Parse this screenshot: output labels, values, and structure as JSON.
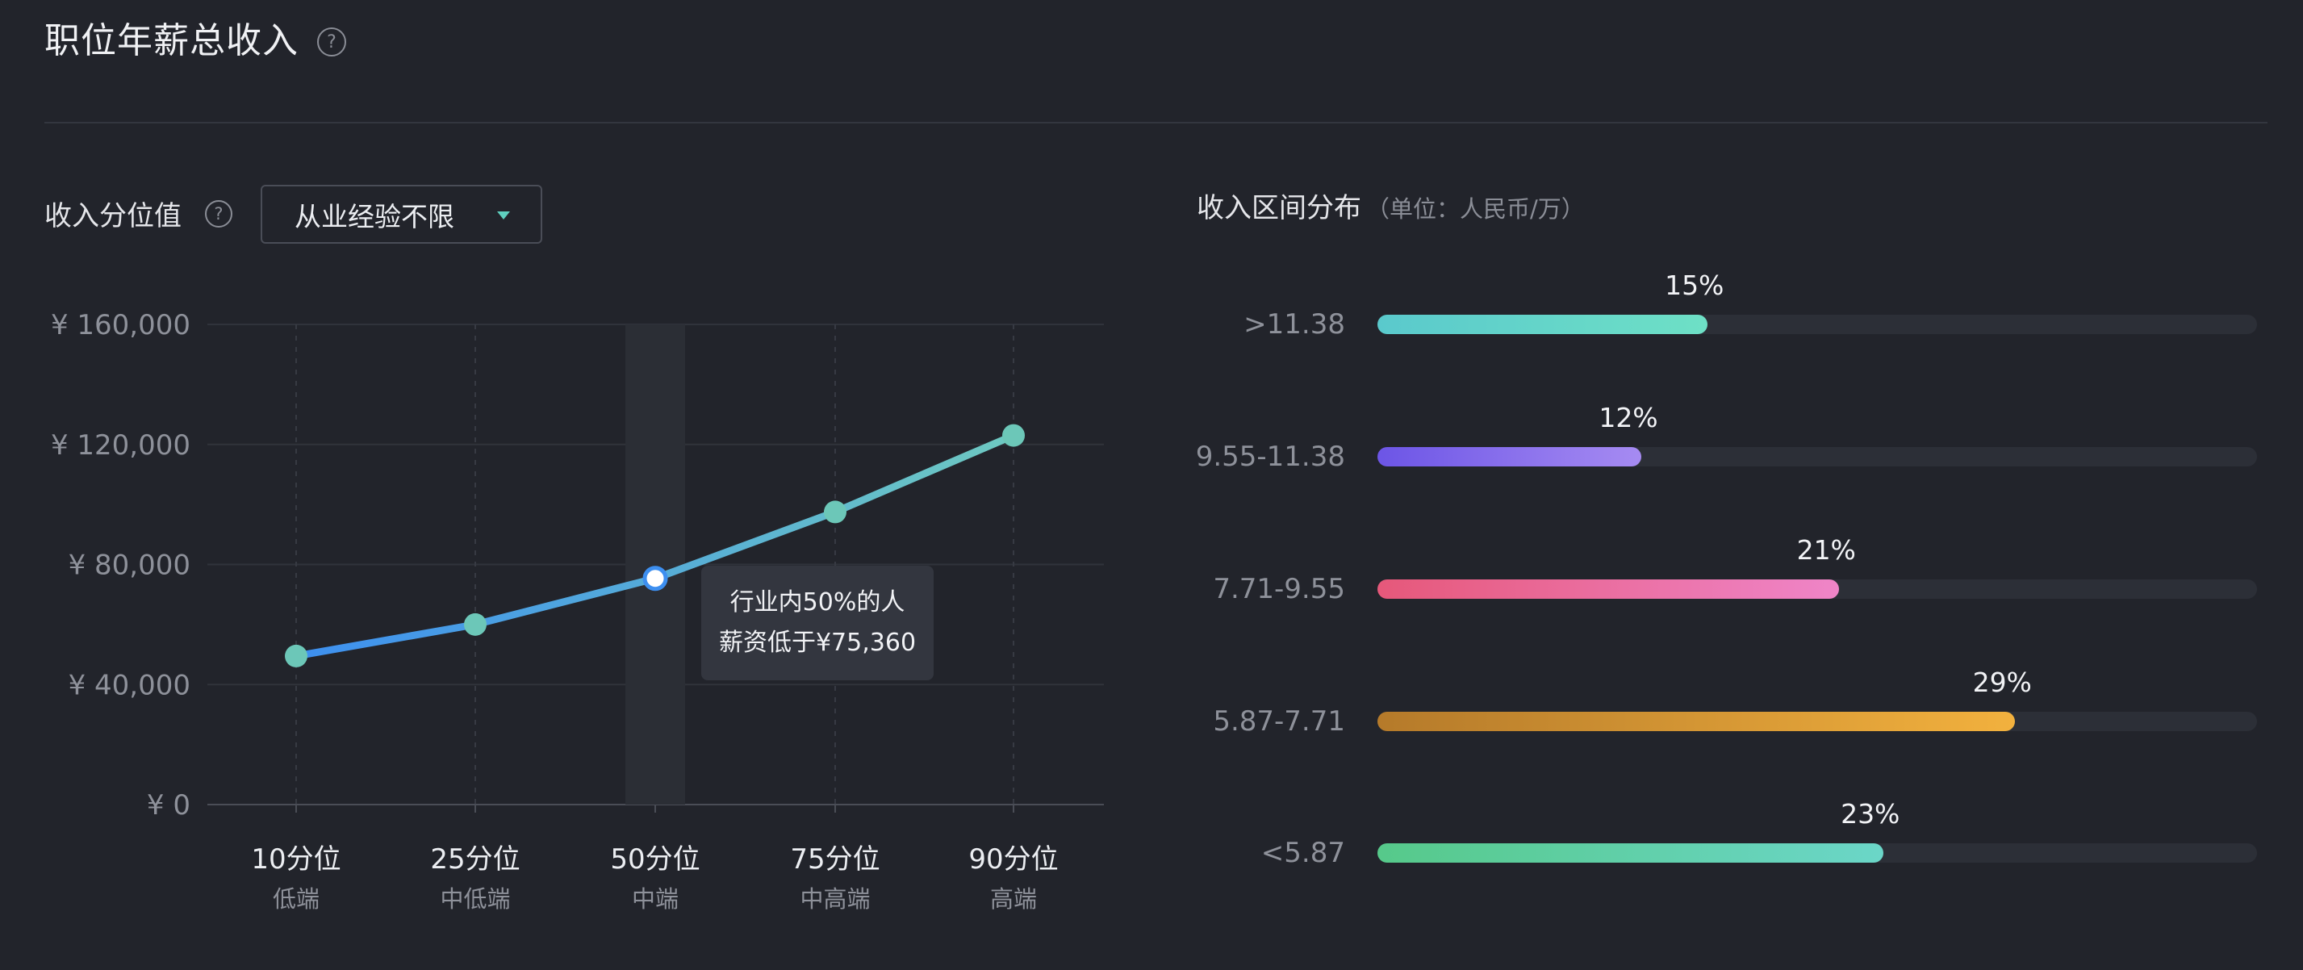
{
  "header": {
    "title": "职位年薪总收入",
    "help_icon": "?"
  },
  "percentile_section": {
    "label": "收入分位值",
    "help_icon": "?",
    "dropdown_value": "从业经验不限"
  },
  "tooltip": {
    "line1": "行业内50%的人",
    "line2": "薪资低于¥75,360"
  },
  "colors": {
    "line_start": "#3d8ff0",
    "line_end": "#6ec9c1",
    "point": "#6cc7b8",
    "grid": "#30333b",
    "highlight_band": "#2b2e35"
  },
  "chart_data": {
    "type": "line",
    "categories": [
      "10分位",
      "25分位",
      "50分位",
      "75分位",
      "90分位"
    ],
    "sublabels": [
      "低端",
      "中低端",
      "中端",
      "中高端",
      "高端"
    ],
    "values": [
      49500,
      60000,
      75360,
      97500,
      123000
    ],
    "yticks": [
      "¥ 160,000",
      "¥ 120,000",
      "¥ 80,000",
      "¥ 40,000",
      "¥ 0"
    ],
    "ytick_values": [
      160000,
      120000,
      80000,
      40000,
      0
    ],
    "ylim": [
      0,
      160000
    ],
    "highlight_index": 2,
    "grid": true
  },
  "distribution": {
    "title": "收入区间分布",
    "unit": "（单位：人民币/万）",
    "rows": [
      {
        "label": ">11.38",
        "pct_label": "15%",
        "percent": 15,
        "fill_ratio": 0.375,
        "color_from": "#5ac9cc",
        "color_to": "#6ee0c6"
      },
      {
        "label": "9.55-11.38",
        "pct_label": "12%",
        "percent": 12,
        "fill_ratio": 0.3,
        "color_from": "#6c55e6",
        "color_to": "#a68bf2"
      },
      {
        "label": "7.71-9.55",
        "pct_label": "21%",
        "percent": 21,
        "fill_ratio": 0.525,
        "color_from": "#e6587a",
        "color_to": "#ef85c8"
      },
      {
        "label": "5.87-7.71",
        "pct_label": "29%",
        "percent": 29,
        "fill_ratio": 0.725,
        "color_from": "#b57a2a",
        "color_to": "#f2b13e"
      },
      {
        "label": "<5.87",
        "pct_label": "23%",
        "percent": 23,
        "fill_ratio": 0.575,
        "color_from": "#56c98a",
        "color_to": "#6bd6c8"
      }
    ]
  }
}
